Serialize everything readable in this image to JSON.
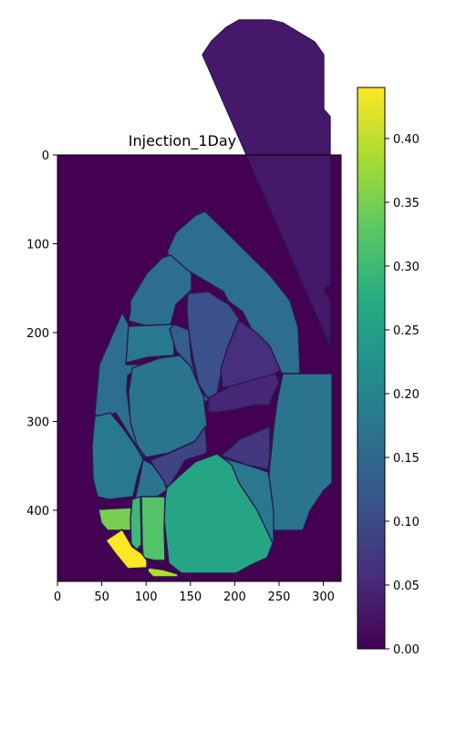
{
  "chart_data": {
    "type": "heatmap",
    "title": "Injection_1Day PC3",
    "xlabel": "",
    "ylabel": "",
    "xlim": [
      0,
      320
    ],
    "ylim": [
      480,
      0
    ],
    "x_ticks": [
      0,
      50,
      100,
      150,
      200,
      250,
      300
    ],
    "y_ticks": [
      0,
      100,
      200,
      300,
      400
    ],
    "colorbar": {
      "colormap": "viridis",
      "min": 0.0,
      "max": 0.44,
      "ticks": [
        "0.00",
        "0.05",
        "0.10",
        "0.15",
        "0.20",
        "0.25",
        "0.30",
        "0.35",
        "0.40"
      ]
    },
    "background_value": 0.0,
    "regions": [
      {
        "id": "r-top-right",
        "value": 0.03,
        "pts": [
          [
            222,
            60
          ],
          [
            232,
            45
          ],
          [
            248,
            30
          ],
          [
            262,
            22
          ],
          [
            297,
            22
          ],
          [
            310,
            25
          ],
          [
            345,
            46
          ],
          [
            355,
            60
          ],
          [
            355,
            120
          ],
          [
            362,
            128
          ],
          [
            362,
            312
          ],
          [
            355,
            318
          ],
          [
            362,
            330
          ],
          [
            362,
            380
          ]
        ]
      },
      {
        "id": "r-long-diagonal",
        "value": 0.16,
        "pts": [
          [
            184,
            275
          ],
          [
            193,
            255
          ],
          [
            215,
            236
          ],
          [
            225,
            232
          ],
          [
            296,
            302
          ],
          [
            318,
            330
          ],
          [
            327,
            360
          ],
          [
            329,
            410
          ],
          [
            309,
            410
          ],
          [
            302,
            395
          ],
          [
            280,
            370
          ],
          [
            266,
            342
          ],
          [
            250,
            330
          ],
          [
            245,
            320
          ],
          [
            208,
            298
          ],
          [
            193,
            290
          ],
          [
            184,
            282
          ]
        ]
      },
      {
        "id": "r-upper-left",
        "value": 0.16,
        "pts": [
          [
            143,
            330
          ],
          [
            161,
            300
          ],
          [
            178,
            283
          ],
          [
            187,
            280
          ],
          [
            210,
            300
          ],
          [
            210,
            318
          ],
          [
            193,
            334
          ],
          [
            186,
            360
          ],
          [
            169,
            360
          ],
          [
            141,
            352
          ],
          [
            143,
            340
          ]
        ]
      },
      {
        "id": "r-purple-lobe",
        "value": 0.11,
        "pts": [
          [
            206,
            322
          ],
          [
            228,
            320
          ],
          [
            252,
            335
          ],
          [
            262,
            350
          ],
          [
            250,
            380
          ],
          [
            244,
            400
          ],
          [
            238,
            432
          ],
          [
            228,
            437
          ],
          [
            218,
            422
          ],
          [
            212,
            395
          ],
          [
            207,
            365
          ],
          [
            205,
            340
          ]
        ]
      },
      {
        "id": "r-dark-lobe",
        "value": 0.06,
        "pts": [
          [
            262,
            352
          ],
          [
            280,
            364
          ],
          [
            296,
            380
          ],
          [
            307,
            405
          ],
          [
            297,
            415
          ],
          [
            278,
            422
          ],
          [
            244,
            425
          ],
          [
            242,
            405
          ],
          [
            250,
            380
          ]
        ]
      },
      {
        "id": "r-small-box",
        "value": 0.18,
        "pts": [
          [
            139,
            358
          ],
          [
            190,
            356
          ],
          [
            191,
            390
          ],
          [
            162,
            392
          ],
          [
            138,
            398
          ],
          [
            138,
            362
          ]
        ]
      },
      {
        "id": "r-mid-left-column",
        "value": 0.16,
        "pts": [
          [
            134,
            343
          ],
          [
            141,
            356
          ],
          [
            138,
            400
          ],
          [
            159,
            400
          ],
          [
            140,
            412
          ],
          [
            139,
            428
          ],
          [
            143,
            460
          ],
          [
            155,
            486
          ],
          [
            158,
            503
          ],
          [
            127,
            453
          ],
          [
            109,
            460
          ],
          [
            104,
            454
          ],
          [
            109,
            400
          ]
        ]
      },
      {
        "id": "r-mid-vertical",
        "value": 0.13,
        "pts": [
          [
            186,
            361
          ],
          [
            191,
            356
          ],
          [
            207,
            362
          ],
          [
            210,
            395
          ],
          [
            219,
            428
          ],
          [
            228,
            437
          ],
          [
            238,
            432
          ],
          [
            226,
            440
          ],
          [
            221,
            445
          ],
          [
            209,
            402
          ],
          [
            193,
            385
          ]
        ]
      },
      {
        "id": "r-big-center",
        "value": 0.17,
        "pts": [
          [
            145,
            404
          ],
          [
            175,
            393
          ],
          [
            197,
            390
          ],
          [
            209,
            402
          ],
          [
            223,
            435
          ],
          [
            227,
            466
          ],
          [
            214,
            484
          ],
          [
            185,
            497
          ],
          [
            160,
            502
          ],
          [
            150,
            488
          ],
          [
            143,
            463
          ],
          [
            141,
            430
          ]
        ]
      },
      {
        "id": "r-dark-band",
        "value": 0.05,
        "pts": [
          [
            229,
            437
          ],
          [
            252,
            424
          ],
          [
            302,
            410
          ],
          [
            306,
            420
          ],
          [
            300,
            432
          ],
          [
            295,
            445
          ],
          [
            280,
            444
          ],
          [
            255,
            450
          ],
          [
            239,
            452
          ],
          [
            228,
            452
          ]
        ]
      },
      {
        "id": "r-right-big",
        "value": 0.17,
        "pts": [
          [
            310,
            410
          ],
          [
            364,
            410
          ],
          [
            364,
            530
          ],
          [
            355,
            538
          ],
          [
            340,
            560
          ],
          [
            332,
            582
          ],
          [
            300,
            582
          ],
          [
            295,
            566
          ],
          [
            295,
            520
          ],
          [
            300,
            470
          ],
          [
            304,
            440
          ]
        ]
      },
      {
        "id": "r-dark-small",
        "value": 0.07,
        "pts": [
          [
            243,
            500
          ],
          [
            263,
            482
          ],
          [
            296,
            468
          ],
          [
            296,
            498
          ],
          [
            294,
            515
          ],
          [
            270,
            510
          ]
        ]
      },
      {
        "id": "r-left-edge",
        "value": 0.18,
        "pts": [
          [
            104,
            457
          ],
          [
            121,
            453
          ],
          [
            135,
            470
          ],
          [
            149,
            490
          ],
          [
            157,
            504
          ],
          [
            151,
            522
          ],
          [
            146,
            545
          ],
          [
            120,
            548
          ],
          [
            107,
            545
          ],
          [
            102,
            525
          ],
          [
            101,
            490
          ]
        ]
      },
      {
        "id": "r-center-purple",
        "value": 0.09,
        "pts": [
          [
            165,
            505
          ],
          [
            186,
            497
          ],
          [
            213,
            485
          ],
          [
            225,
            468
          ],
          [
            227,
            497
          ],
          [
            203,
            505
          ],
          [
            185,
            535
          ],
          [
            178,
            529
          ]
        ]
      },
      {
        "id": "r-small-mid",
        "value": 0.17,
        "pts": [
          [
            157,
            504
          ],
          [
            167,
            510
          ],
          [
            180,
            528
          ],
          [
            183,
            538
          ],
          [
            172,
            545
          ],
          [
            148,
            548
          ],
          [
            153,
            525
          ]
        ]
      },
      {
        "id": "r-small-right",
        "value": 0.18,
        "pts": [
          [
            242,
            502
          ],
          [
            270,
            510
          ],
          [
            294,
            518
          ],
          [
            296,
            530
          ],
          [
            300,
            562
          ],
          [
            300,
            598
          ],
          [
            290,
            585
          ],
          [
            270,
            545
          ],
          [
            260,
            530
          ]
        ]
      },
      {
        "id": "r-big-green",
        "value": 0.26,
        "pts": [
          [
            197,
            522
          ],
          [
            214,
            507
          ],
          [
            238,
            498
          ],
          [
            254,
            510
          ],
          [
            262,
            530
          ],
          [
            282,
            560
          ],
          [
            299,
            596
          ],
          [
            293,
            612
          ],
          [
            275,
            620
          ],
          [
            259,
            629
          ],
          [
            199,
            629
          ],
          [
            185,
            618
          ],
          [
            179,
            560
          ],
          [
            183,
            535
          ]
        ]
      },
      {
        "id": "r-green-center",
        "value": 0.32,
        "pts": [
          [
            155,
            545
          ],
          [
            181,
            545
          ],
          [
            180,
            580
          ],
          [
            181,
            615
          ],
          [
            170,
            615
          ],
          [
            157,
            612
          ],
          [
            156,
            598
          ]
        ]
      },
      {
        "id": "r-light-green-left",
        "value": 0.35,
        "pts": [
          [
            108,
            559
          ],
          [
            146,
            557
          ],
          [
            144,
            582
          ],
          [
            118,
            582
          ],
          [
            111,
            574
          ]
        ]
      },
      {
        "id": "r-small-column",
        "value": 0.3,
        "pts": [
          [
            145,
            548
          ],
          [
            154,
            545
          ],
          [
            155,
            598
          ],
          [
            150,
            603
          ],
          [
            144,
            597
          ],
          [
            143,
            570
          ]
        ]
      },
      {
        "id": "r-yellow",
        "value": 0.44,
        "pts": [
          [
            116,
            593
          ],
          [
            134,
            581
          ],
          [
            145,
            600
          ],
          [
            155,
            607
          ],
          [
            161,
            615
          ],
          [
            161,
            623
          ],
          [
            140,
            624
          ],
          [
            127,
            608
          ]
        ]
      },
      {
        "id": "r-yellow-green-bottom",
        "value": 0.39,
        "pts": [
          [
            163,
            623
          ],
          [
            178,
            625
          ],
          [
            195,
            630
          ],
          [
            195,
            633
          ],
          [
            168,
            633
          ],
          [
            162,
            627
          ]
        ]
      }
    ]
  }
}
